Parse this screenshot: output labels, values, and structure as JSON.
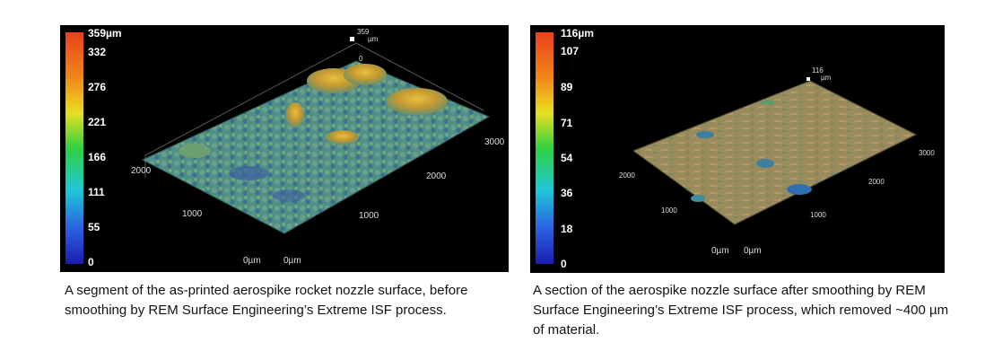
{
  "left_panel": {
    "colorbar_ticks": [
      "359µm",
      "332",
      "276",
      "221",
      "166",
      "111",
      "55",
      "0"
    ],
    "marker_value": "359",
    "marker_unit": "µm",
    "marker_zero": "0",
    "axis_labels": {
      "x_3000": "3000",
      "x_2000": "2000",
      "x_1000": "1000",
      "x_0": "0µm",
      "y_2000": "2000",
      "y_1000": "1000",
      "y_0": "0µm"
    },
    "caption": "A segment of the as-printed aerospike rocket nozzle surface, before smoothing by REM Surface Engineering’s Extreme ISF process."
  },
  "right_panel": {
    "colorbar_ticks": [
      "116µm",
      "107",
      "89",
      "71",
      "54",
      "36",
      "18",
      "0"
    ],
    "marker_value": "116",
    "marker_unit": "µm",
    "axis_labels": {
      "x_3000": "3000",
      "x_2000": "2000",
      "x_1000": "1000",
      "x_0": "0µm",
      "y_2000": "2000",
      "y_1000": "1000",
      "y_0": "0µm"
    },
    "caption": "A section of the aerospike nozzle surface after smoothing by REM Surface Engineering’s Extreme ISF process, which removed ~400 µm of material."
  },
  "colors": {
    "colorbar_top": "#e8401c",
    "colorbar_bottom": "#1c1cb0",
    "rough_surface": "#4f8f86",
    "smooth_surface": "#9a8a5c"
  }
}
